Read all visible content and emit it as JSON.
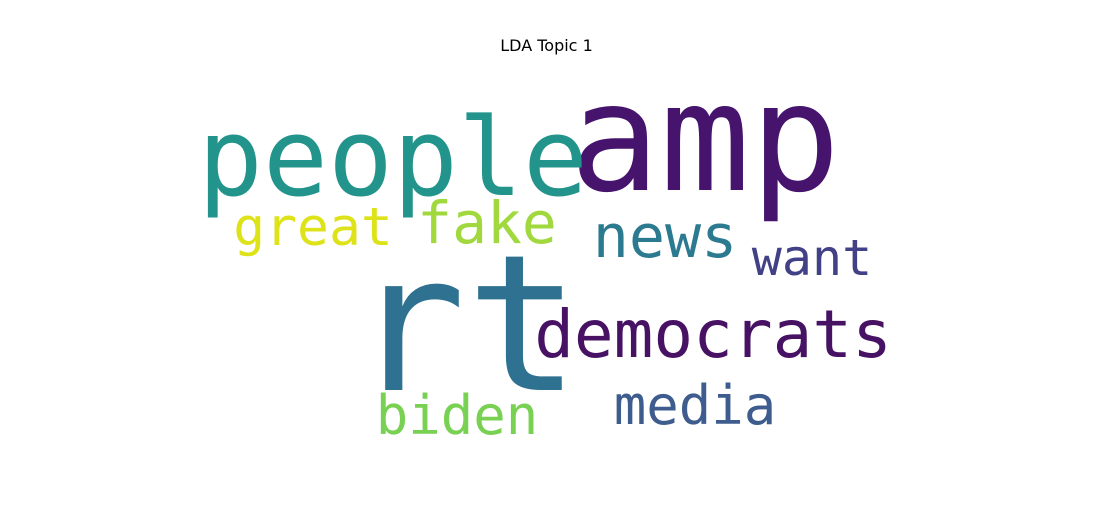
{
  "chart_data": {
    "type": "wordcloud",
    "title": "LDA Topic 1",
    "words": [
      {
        "text": "amp",
        "weight": 1.0,
        "color": "#46136d"
      },
      {
        "text": "rt",
        "weight": 0.98,
        "color": "#2e7190"
      },
      {
        "text": "people",
        "weight": 0.72,
        "color": "#23948b"
      },
      {
        "text": "democrats",
        "weight": 0.5,
        "color": "#471263"
      },
      {
        "text": "news",
        "weight": 0.42,
        "color": "#2c7a8f"
      },
      {
        "text": "fake",
        "weight": 0.4,
        "color": "#a0d83e"
      },
      {
        "text": "media",
        "weight": 0.38,
        "color": "#3e5c8d"
      },
      {
        "text": "biden",
        "weight": 0.36,
        "color": "#78d152"
      },
      {
        "text": "great",
        "weight": 0.34,
        "color": "#dde318"
      },
      {
        "text": "want",
        "weight": 0.33,
        "color": "#424086"
      }
    ]
  }
}
